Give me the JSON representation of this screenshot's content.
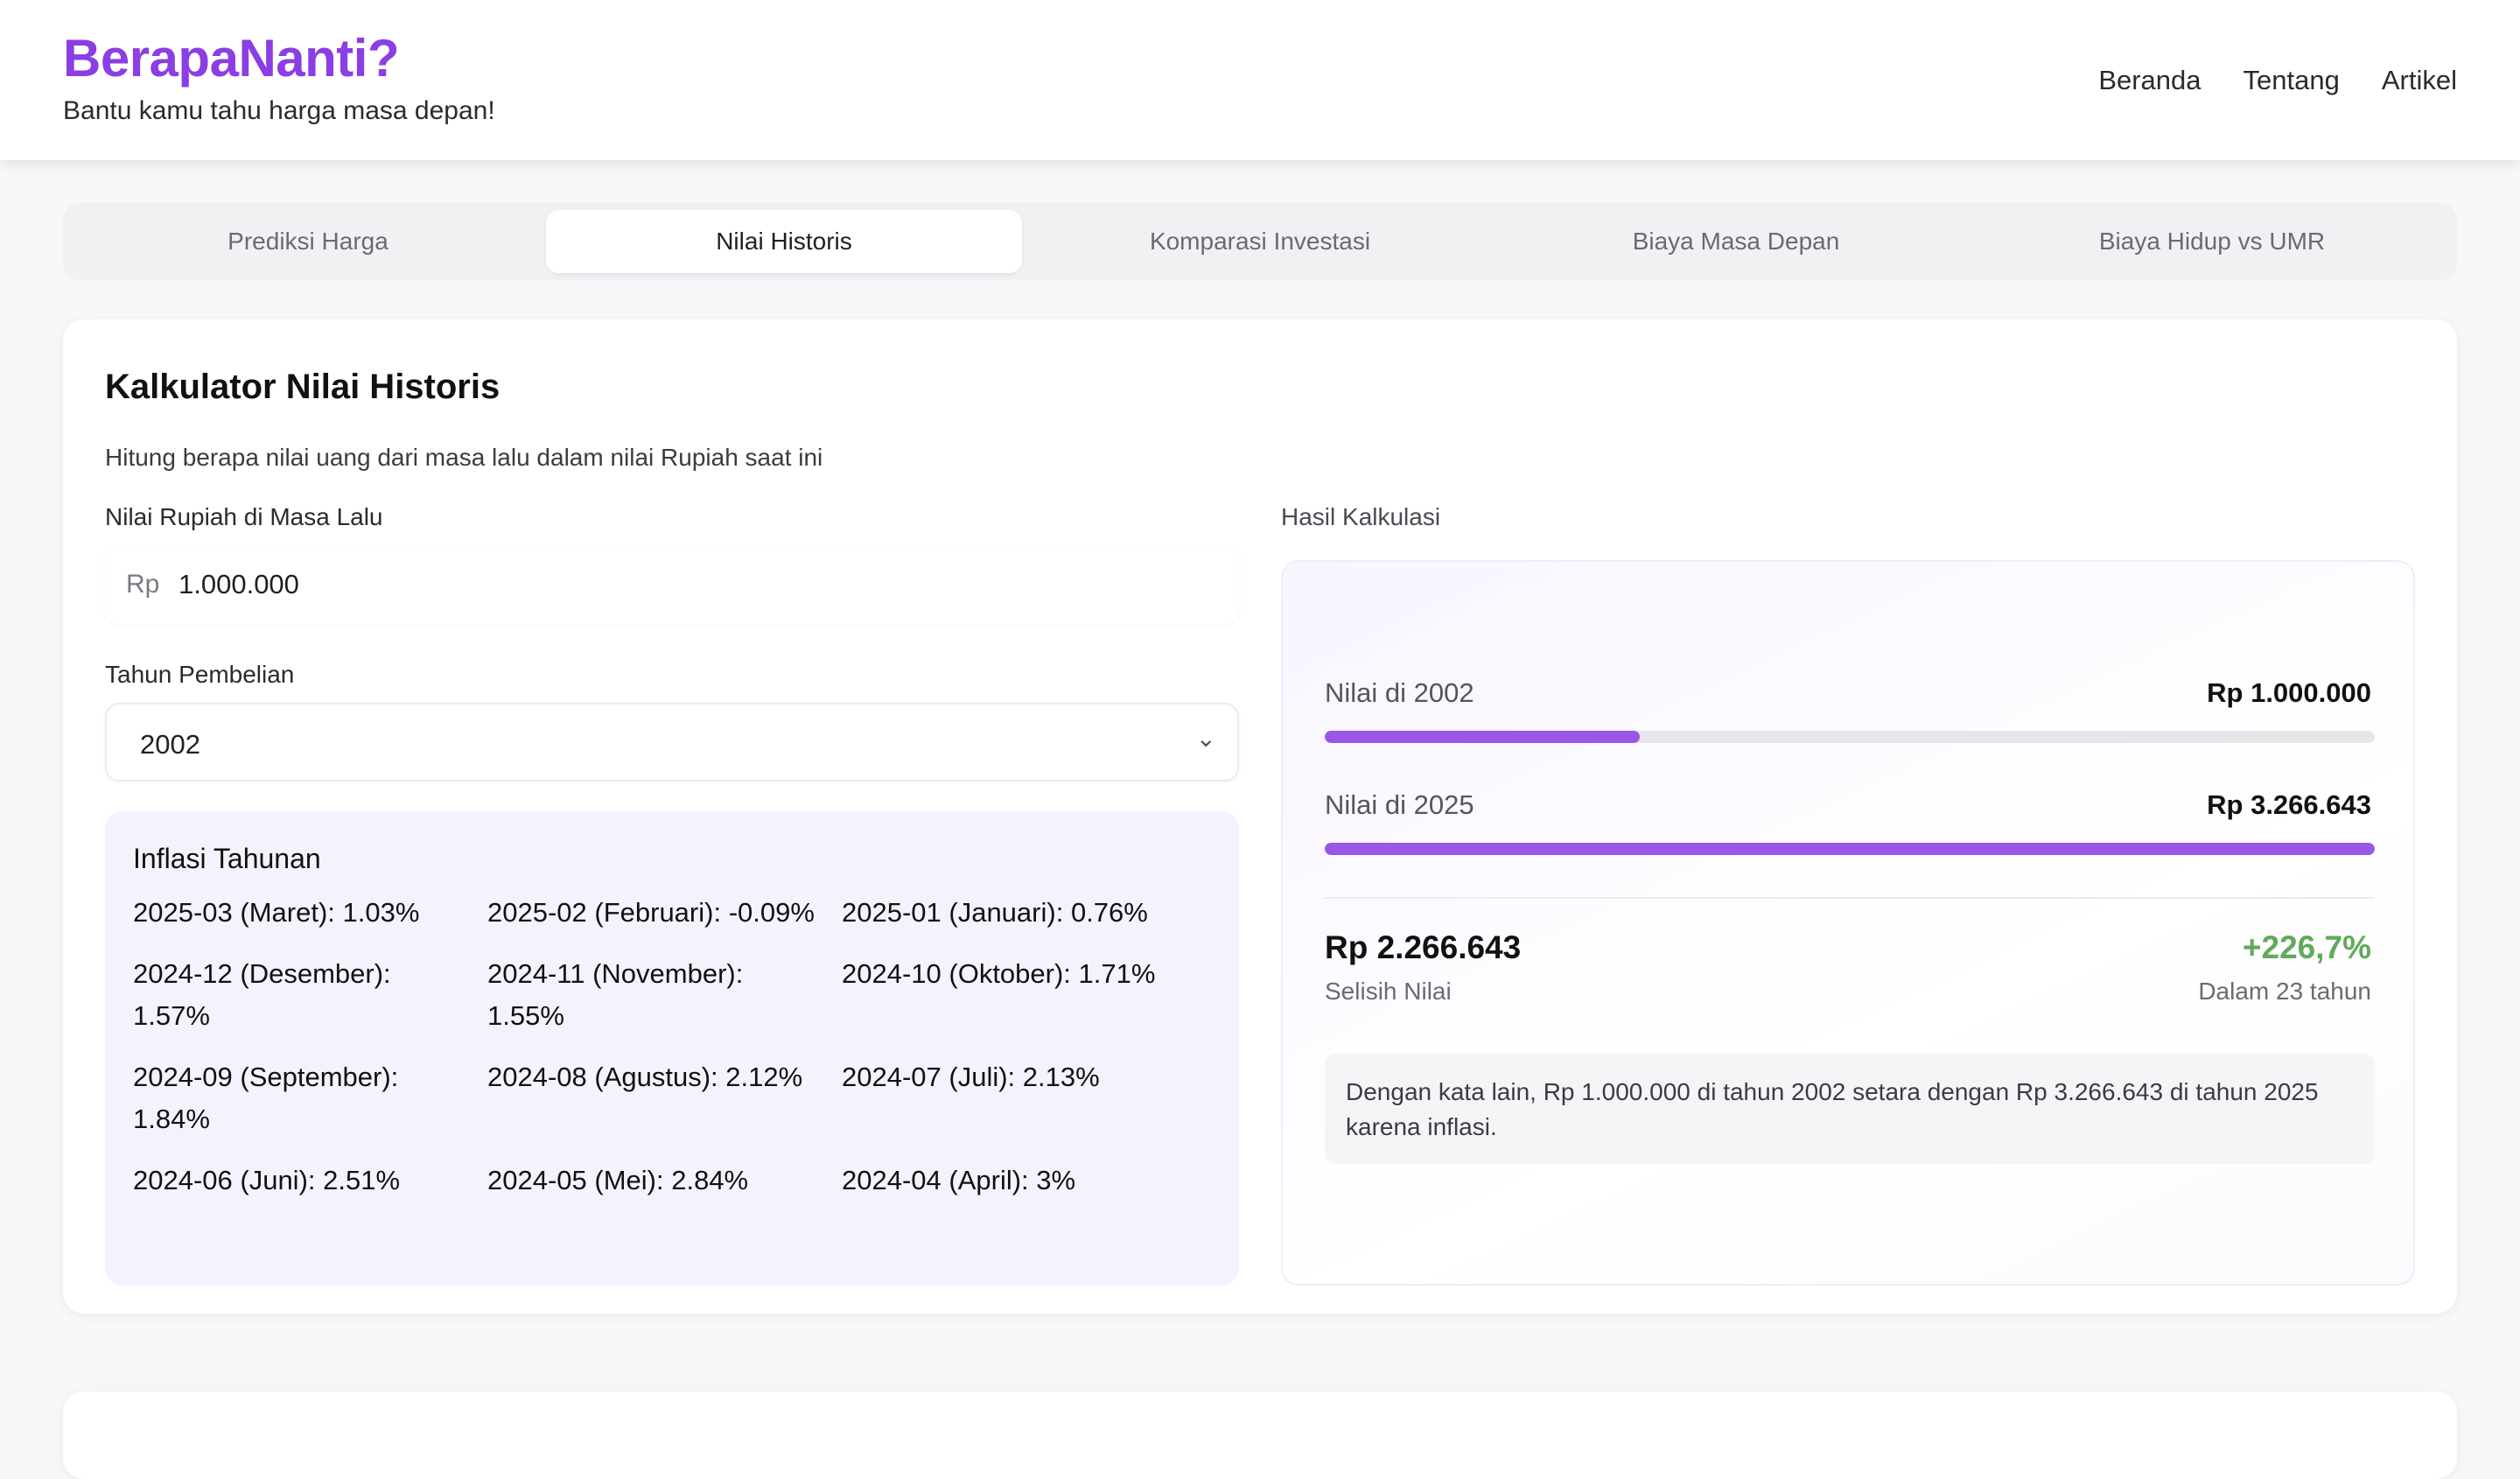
{
  "header": {
    "title": "BerapaNanti?",
    "subtitle": "Bantu kamu tahu harga masa depan!",
    "nav": [
      "Beranda",
      "Tentang",
      "Artikel"
    ]
  },
  "tabs": [
    {
      "label": "Prediksi Harga",
      "active": false
    },
    {
      "label": "Nilai Historis",
      "active": true
    },
    {
      "label": "Komparasi Investasi",
      "active": false
    },
    {
      "label": "Biaya Masa Depan",
      "active": false
    },
    {
      "label": "Biaya Hidup vs UMR",
      "active": false
    }
  ],
  "calculator": {
    "title": "Kalkulator Nilai Historis",
    "description": "Hitung berapa nilai uang dari masa lalu dalam nilai Rupiah saat ini",
    "amount_label": "Nilai Rupiah di Masa Lalu",
    "amount_prefix": "Rp",
    "amount_value": "1.000.000",
    "year_label": "Tahun Pembelian",
    "year_value": "2002",
    "inflation_title": "Inflasi Tahunan",
    "inflation": [
      {
        "period": "2025-03 (Maret):",
        "rate": "1.03%"
      },
      {
        "period": "2025-02 (Februari):",
        "rate": "-0.09%"
      },
      {
        "period": "2025-01 (Januari):",
        "rate": "0.76%"
      },
      {
        "period": "2024-12 (Desember):",
        "rate": "1.57%"
      },
      {
        "period": "2024-11 (November):",
        "rate": "1.55%"
      },
      {
        "period": "2024-10 (Oktober):",
        "rate": "1.71%"
      },
      {
        "period": "2024-09 (September):",
        "rate": "1.84%"
      },
      {
        "period": "2024-08 (Agustus):",
        "rate": "2.12%"
      },
      {
        "period": "2024-07 (Juli):",
        "rate": "2.13%"
      },
      {
        "period": "2024-06 (Juni):",
        "rate": "2.51%"
      },
      {
        "period": "2024-05 (Mei):",
        "rate": "2.84%"
      },
      {
        "period": "2024-04 (April):",
        "rate": "3%"
      }
    ]
  },
  "result": {
    "label": "Hasil Kalkulasi",
    "past_label": "Nilai di 2002",
    "past_value": "Rp 1.000.000",
    "past_fraction": 0.3,
    "now_label": "Nilai di 2025",
    "now_value": "Rp 3.266.643",
    "now_fraction": 1.0,
    "difference_value": "Rp 2.266.643",
    "difference_label": "Selisih Nilai",
    "percent_value": "+226,7%",
    "percent_label": "Dalam 23 tahun",
    "note": "Dengan kata lain, Rp 1.000.000 di tahun 2002 setara dengan Rp 3.266.643 di tahun 2025 karena inflasi."
  }
}
